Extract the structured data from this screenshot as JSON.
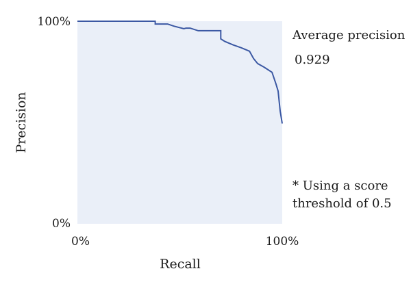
{
  "chart_data": {
    "type": "area",
    "title": "",
    "xlabel": "Recall",
    "ylabel": "Precision",
    "xlim": [
      0,
      100
    ],
    "ylim": [
      0,
      100
    ],
    "x_ticks": [
      {
        "value": 0,
        "label": "0%"
      },
      {
        "value": 100,
        "label": "100%"
      }
    ],
    "y_ticks": [
      {
        "value": 0,
        "label": "0%"
      },
      {
        "value": 100,
        "label": "100%"
      }
    ],
    "grid": false,
    "series": [
      {
        "points": [
          [
            0,
            100
          ],
          [
            38,
            100
          ],
          [
            38,
            98.6
          ],
          [
            44,
            98.6
          ],
          [
            47,
            97.6
          ],
          [
            52,
            96.3
          ],
          [
            53,
            96.6
          ],
          [
            55,
            96.6
          ],
          [
            59,
            95.3
          ],
          [
            70,
            95.3
          ],
          [
            70,
            91.3
          ],
          [
            72,
            90.0
          ],
          [
            76,
            88.3
          ],
          [
            80,
            86.9
          ],
          [
            84,
            85.2
          ],
          [
            86,
            81.6
          ],
          [
            88,
            79.1
          ],
          [
            91,
            77.4
          ],
          [
            95,
            74.8
          ],
          [
            97,
            68.9
          ],
          [
            98,
            65.5
          ],
          [
            99,
            55.7
          ],
          [
            100,
            49.5
          ]
        ]
      }
    ],
    "annotations": {
      "ap_label": "Average precision",
      "ap_value": "0.929",
      "note_line1": "* Using a score",
      "note_line2": "threshold of 0.5"
    },
    "colors": {
      "line": "#3b58a3",
      "fill": "#eaeff8"
    }
  }
}
